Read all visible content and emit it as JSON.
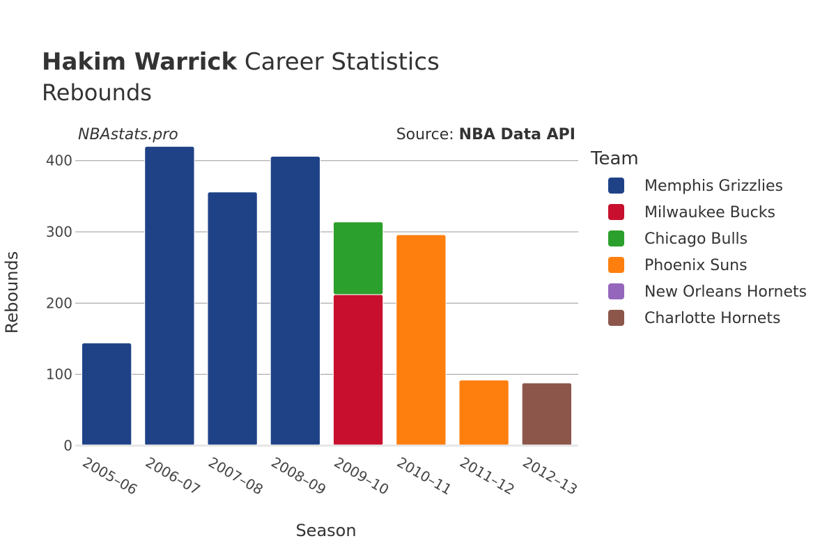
{
  "title": {
    "player": "Hakim Warrick",
    "rest": " Career Statistics",
    "subtitle": "Rebounds"
  },
  "brand": "NBAstats.pro",
  "source": {
    "prefix": "Source: ",
    "name": "NBA Data API"
  },
  "chart_data": {
    "type": "bar",
    "stacked": true,
    "xlabel": "Season",
    "ylabel": "Rebounds",
    "ylim": [
      0,
      430
    ],
    "yticks": [
      0,
      100,
      200,
      300,
      400
    ],
    "grid": true,
    "legend_title": "Team",
    "legend_position": "right",
    "categories": [
      "2005–06",
      "2006–07",
      "2007–08",
      "2008–09",
      "2009–10",
      "2010–11",
      "2011–12",
      "2012–13"
    ],
    "series": [
      {
        "name": "Memphis Grizzlies",
        "color": "#1f4287",
        "values": [
          144,
          420,
          356,
          406,
          0,
          0,
          0,
          0
        ]
      },
      {
        "name": "Milwaukee Bucks",
        "color": "#c8102e",
        "values": [
          0,
          0,
          0,
          0,
          212,
          0,
          0,
          0
        ]
      },
      {
        "name": "Chicago Bulls",
        "color": "#2ca02c",
        "values": [
          0,
          0,
          0,
          0,
          102,
          0,
          0,
          0
        ]
      },
      {
        "name": "Phoenix Suns",
        "color": "#ff7f0e",
        "values": [
          0,
          0,
          0,
          0,
          0,
          296,
          92,
          0
        ]
      },
      {
        "name": "New Orleans Hornets",
        "color": "#9467bd",
        "values": [
          0,
          0,
          0,
          0,
          0,
          0,
          0,
          0
        ]
      },
      {
        "name": "Charlotte Hornets",
        "color": "#8c564b",
        "values": [
          0,
          0,
          0,
          0,
          0,
          0,
          0,
          88
        ]
      }
    ]
  }
}
